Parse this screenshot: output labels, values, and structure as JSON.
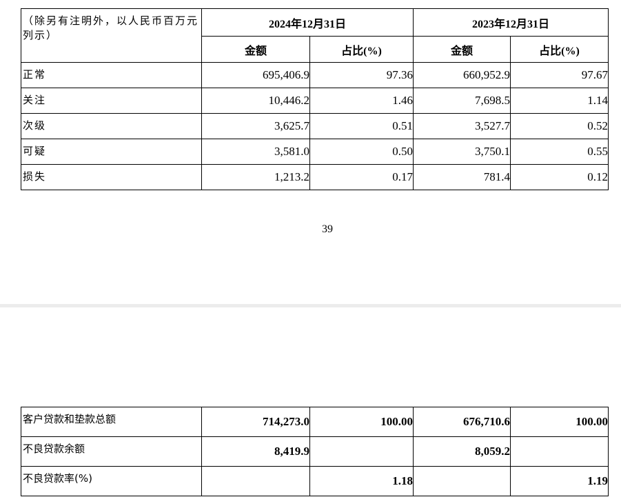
{
  "table1": {
    "header_label": "（除另有注明外，以人民币百万元列示）",
    "periods": [
      "2024年12月31日",
      "2023年12月31日"
    ],
    "sub_headers": [
      "金额",
      "占比(%)",
      "金额",
      "占比(%)"
    ],
    "rows": [
      {
        "label": "正常",
        "values": [
          "695,406.9",
          "97.36",
          "660,952.9",
          "97.67"
        ]
      },
      {
        "label": "关注",
        "values": [
          "10,446.2",
          "1.46",
          "7,698.5",
          "1.14"
        ]
      },
      {
        "label": "次级",
        "values": [
          "3,625.7",
          "0.51",
          "3,527.7",
          "0.52"
        ]
      },
      {
        "label": "可疑",
        "values": [
          "3,581.0",
          "0.50",
          "3,750.1",
          "0.55"
        ]
      },
      {
        "label": "损失",
        "values": [
          "1,213.2",
          "0.17",
          "781.4",
          "0.12"
        ]
      }
    ]
  },
  "page_number": "39",
  "table2": {
    "rows": [
      {
        "label": "客户贷款和垫款总额",
        "values": [
          "714,273.0",
          "100.00",
          "676,710.6",
          "100.00"
        ]
      },
      {
        "label": "不良贷款余额",
        "values": [
          "8,419.9",
          "",
          "8,059.2",
          ""
        ]
      },
      {
        "label": "不良贷款率(%)",
        "values": [
          "",
          "1.18",
          "",
          "1.19"
        ]
      }
    ]
  }
}
